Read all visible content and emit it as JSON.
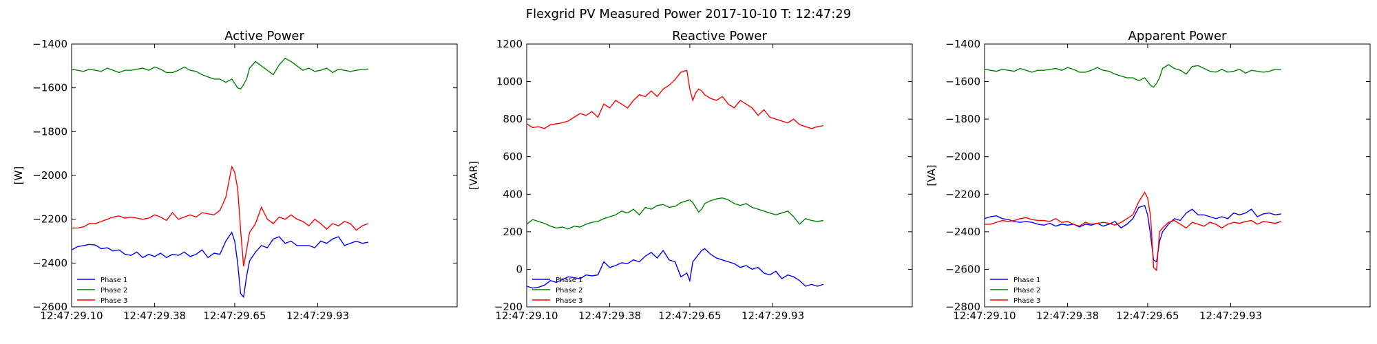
{
  "figure": {
    "suptitle": "Flexgrid PV Measured Power 2017-10-10 T: 12:47:29"
  },
  "colors": {
    "phase1": "#0000ff",
    "phase2": "#008000",
    "phase3": "#ff0000"
  },
  "chart_data": [
    {
      "type": "line",
      "title": "Active Power",
      "xlabel": "",
      "ylabel": "[W]",
      "ylim": [
        -2600,
        -1400
      ],
      "yticks": [
        -2600,
        -2400,
        -2200,
        -2000,
        -1800,
        -1600,
        -1400
      ],
      "xlim": [
        0,
        1.0
      ],
      "xticks": [
        0,
        0.28,
        0.55,
        0.83
      ],
      "xticklabels": [
        "12:47:29.10",
        "12:47:29.38",
        "12:47:29.65",
        "12:47:29.93"
      ],
      "legend_position": "lower-left",
      "grid": false,
      "x": [
        0.0,
        0.02,
        0.04,
        0.06,
        0.08,
        0.1,
        0.12,
        0.14,
        0.16,
        0.18,
        0.2,
        0.22,
        0.24,
        0.26,
        0.28,
        0.3,
        0.32,
        0.34,
        0.36,
        0.38,
        0.4,
        0.42,
        0.44,
        0.46,
        0.48,
        0.5,
        0.52,
        0.54,
        0.55,
        0.56,
        0.57,
        0.58,
        0.59,
        0.6,
        0.62,
        0.64,
        0.66,
        0.68,
        0.7,
        0.72,
        0.74,
        0.76,
        0.78,
        0.8,
        0.82,
        0.84,
        0.86,
        0.88,
        0.9,
        0.92,
        0.94,
        0.96,
        0.98,
        1.0
      ],
      "series": [
        {
          "name": "Phase 1",
          "color": "#0000ff",
          "values": [
            -2340,
            -2325,
            -2320,
            -2315,
            -2318,
            -2335,
            -2330,
            -2345,
            -2340,
            -2360,
            -2365,
            -2350,
            -2375,
            -2360,
            -2370,
            -2355,
            -2375,
            -2360,
            -2365,
            -2350,
            -2370,
            -2360,
            -2340,
            -2375,
            -2355,
            -2360,
            -2300,
            -2260,
            -2300,
            -2400,
            -2540,
            -2555,
            -2460,
            -2390,
            -2350,
            -2320,
            -2330,
            -2290,
            -2280,
            -2310,
            -2300,
            -2320,
            -2320,
            -2320,
            -2330,
            -2300,
            -2310,
            -2290,
            -2280,
            -2320,
            -2310,
            -2300,
            -2310,
            -2305
          ]
        },
        {
          "name": "Phase 2",
          "color": "#008000",
          "values": [
            -1515,
            -1520,
            -1525,
            -1515,
            -1520,
            -1525,
            -1510,
            -1520,
            -1530,
            -1520,
            -1520,
            -1515,
            -1510,
            -1520,
            -1505,
            -1515,
            -1530,
            -1530,
            -1520,
            -1505,
            -1520,
            -1525,
            -1540,
            -1550,
            -1560,
            -1560,
            -1575,
            -1560,
            -1580,
            -1600,
            -1605,
            -1585,
            -1560,
            -1510,
            -1480,
            -1500,
            -1520,
            -1540,
            -1495,
            -1465,
            -1480,
            -1500,
            -1520,
            -1510,
            -1525,
            -1520,
            -1510,
            -1530,
            -1515,
            -1520,
            -1525,
            -1520,
            -1515,
            -1515
          ]
        },
        {
          "name": "Phase 3",
          "color": "#ff0000",
          "values": [
            -2240,
            -2240,
            -2235,
            -2220,
            -2220,
            -2210,
            -2200,
            -2190,
            -2185,
            -2195,
            -2190,
            -2195,
            -2200,
            -2195,
            -2180,
            -2190,
            -2205,
            -2170,
            -2200,
            -2190,
            -2180,
            -2190,
            -2170,
            -2175,
            -2180,
            -2160,
            -2100,
            -1960,
            -1985,
            -2060,
            -2250,
            -2415,
            -2340,
            -2260,
            -2220,
            -2145,
            -2200,
            -2220,
            -2190,
            -2200,
            -2180,
            -2200,
            -2210,
            -2230,
            -2200,
            -2220,
            -2245,
            -2220,
            -2230,
            -2210,
            -2220,
            -2250,
            -2230,
            -2220
          ]
        }
      ]
    },
    {
      "type": "line",
      "title": "Reactive Power",
      "xlabel": "",
      "ylabel": "[VAR]",
      "ylim": [
        -200,
        1200
      ],
      "yticks": [
        -200,
        0,
        200,
        400,
        600,
        800,
        1000,
        1200
      ],
      "xlim": [
        0,
        1.0
      ],
      "xticks": [
        0,
        0.28,
        0.55,
        0.83
      ],
      "xticklabels": [
        "12:47:29.10",
        "12:47:29.38",
        "12:47:29.65",
        "12:47:29.93"
      ],
      "legend_position": "lower-left",
      "grid": false,
      "x": [
        0.0,
        0.02,
        0.04,
        0.06,
        0.08,
        0.1,
        0.12,
        0.14,
        0.16,
        0.18,
        0.2,
        0.22,
        0.24,
        0.26,
        0.28,
        0.3,
        0.32,
        0.34,
        0.36,
        0.38,
        0.4,
        0.42,
        0.44,
        0.46,
        0.48,
        0.5,
        0.52,
        0.54,
        0.55,
        0.56,
        0.57,
        0.58,
        0.59,
        0.6,
        0.62,
        0.64,
        0.66,
        0.68,
        0.7,
        0.72,
        0.74,
        0.76,
        0.78,
        0.8,
        0.82,
        0.84,
        0.86,
        0.88,
        0.9,
        0.92,
        0.94,
        0.96,
        0.98,
        1.0
      ],
      "series": [
        {
          "name": "Phase 1",
          "color": "#0000ff",
          "values": [
            -90,
            -100,
            -95,
            -85,
            -60,
            -70,
            -55,
            -40,
            -45,
            -50,
            -30,
            -35,
            -30,
            40,
            10,
            20,
            35,
            30,
            50,
            40,
            70,
            90,
            60,
            100,
            50,
            40,
            -40,
            -20,
            -60,
            40,
            60,
            80,
            100,
            110,
            80,
            60,
            50,
            40,
            30,
            10,
            20,
            0,
            10,
            -20,
            -30,
            -10,
            -50,
            -30,
            -40,
            -60,
            -90,
            -80,
            -90,
            -80
          ]
        },
        {
          "name": "Phase 2",
          "color": "#008000",
          "values": [
            240,
            265,
            255,
            245,
            230,
            220,
            225,
            215,
            230,
            225,
            240,
            250,
            255,
            270,
            280,
            290,
            310,
            300,
            320,
            290,
            330,
            320,
            340,
            345,
            330,
            335,
            355,
            365,
            370,
            355,
            330,
            305,
            320,
            350,
            365,
            375,
            380,
            370,
            350,
            340,
            350,
            330,
            320,
            310,
            300,
            290,
            300,
            310,
            280,
            240,
            270,
            260,
            255,
            260
          ]
        },
        {
          "name": "Phase 3",
          "color": "#ff0000",
          "values": [
            775,
            755,
            760,
            750,
            770,
            775,
            780,
            790,
            810,
            830,
            820,
            840,
            810,
            880,
            860,
            900,
            880,
            860,
            900,
            930,
            920,
            950,
            920,
            960,
            980,
            1010,
            1050,
            1060,
            960,
            900,
            940,
            960,
            950,
            930,
            910,
            900,
            920,
            880,
            860,
            900,
            880,
            860,
            820,
            850,
            810,
            800,
            790,
            780,
            800,
            770,
            760,
            750,
            760,
            765
          ]
        }
      ]
    },
    {
      "type": "line",
      "title": "Apparent Power",
      "xlabel": "",
      "ylabel": "[VA]",
      "ylim": [
        -2800,
        -1400
      ],
      "yticks": [
        -2800,
        -2600,
        -2400,
        -2200,
        -2000,
        -1800,
        -1600,
        -1400
      ],
      "xlim": [
        0,
        1.0
      ],
      "xticks": [
        0,
        0.28,
        0.55,
        0.83
      ],
      "xticklabels": [
        "12:47:29.10",
        "12:47:29.38",
        "12:47:29.65",
        "12:47:29.93"
      ],
      "legend_position": "lower-left",
      "grid": false,
      "x": [
        0.0,
        0.02,
        0.04,
        0.06,
        0.08,
        0.1,
        0.12,
        0.14,
        0.16,
        0.18,
        0.2,
        0.22,
        0.24,
        0.26,
        0.28,
        0.3,
        0.32,
        0.34,
        0.36,
        0.38,
        0.4,
        0.42,
        0.44,
        0.46,
        0.48,
        0.5,
        0.52,
        0.54,
        0.55,
        0.56,
        0.57,
        0.58,
        0.59,
        0.6,
        0.62,
        0.64,
        0.66,
        0.68,
        0.7,
        0.72,
        0.74,
        0.76,
        0.78,
        0.8,
        0.82,
        0.84,
        0.86,
        0.88,
        0.9,
        0.92,
        0.94,
        0.96,
        0.98,
        1.0
      ],
      "series": [
        {
          "name": "Phase 1",
          "color": "#0000ff",
          "values": [
            -2330,
            -2320,
            -2315,
            -2330,
            -2335,
            -2345,
            -2350,
            -2345,
            -2350,
            -2360,
            -2365,
            -2355,
            -2370,
            -2360,
            -2365,
            -2360,
            -2375,
            -2360,
            -2365,
            -2355,
            -2370,
            -2360,
            -2345,
            -2380,
            -2360,
            -2330,
            -2270,
            -2260,
            -2310,
            -2420,
            -2550,
            -2560,
            -2450,
            -2400,
            -2360,
            -2330,
            -2340,
            -2300,
            -2280,
            -2310,
            -2310,
            -2320,
            -2330,
            -2320,
            -2330,
            -2300,
            -2310,
            -2300,
            -2280,
            -2320,
            -2305,
            -2300,
            -2310,
            -2305
          ]
        },
        {
          "name": "Phase 2",
          "color": "#008000",
          "values": [
            -1535,
            -1540,
            -1545,
            -1535,
            -1540,
            -1545,
            -1530,
            -1540,
            -1550,
            -1540,
            -1540,
            -1535,
            -1530,
            -1540,
            -1525,
            -1535,
            -1550,
            -1550,
            -1540,
            -1525,
            -1540,
            -1545,
            -1560,
            -1570,
            -1580,
            -1580,
            -1595,
            -1580,
            -1600,
            -1620,
            -1630,
            -1610,
            -1580,
            -1530,
            -1510,
            -1530,
            -1540,
            -1560,
            -1520,
            -1515,
            -1530,
            -1545,
            -1550,
            -1535,
            -1550,
            -1545,
            -1535,
            -1555,
            -1540,
            -1545,
            -1550,
            -1545,
            -1535,
            -1535
          ]
        },
        {
          "name": "Phase 3",
          "color": "#ff0000",
          "values": [
            -2360,
            -2360,
            -2350,
            -2340,
            -2345,
            -2340,
            -2330,
            -2325,
            -2335,
            -2340,
            -2340,
            -2345,
            -2330,
            -2350,
            -2345,
            -2360,
            -2370,
            -2350,
            -2360,
            -2355,
            -2350,
            -2355,
            -2365,
            -2350,
            -2330,
            -2310,
            -2240,
            -2190,
            -2220,
            -2320,
            -2590,
            -2605,
            -2400,
            -2380,
            -2350,
            -2340,
            -2360,
            -2380,
            -2350,
            -2360,
            -2370,
            -2350,
            -2360,
            -2380,
            -2360,
            -2350,
            -2355,
            -2345,
            -2340,
            -2360,
            -2345,
            -2350,
            -2355,
            -2345
          ]
        }
      ]
    }
  ]
}
